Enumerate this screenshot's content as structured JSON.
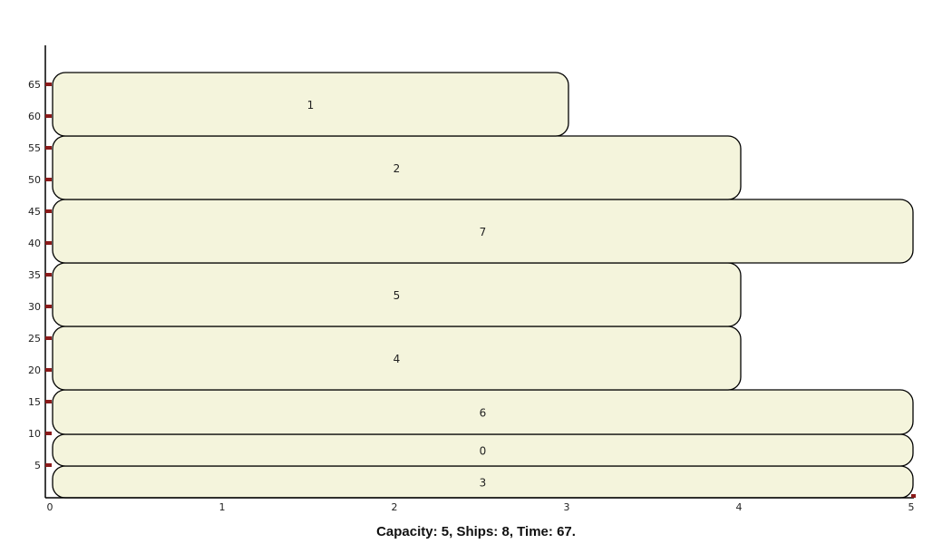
{
  "caption": {
    "capacity_label": "Capacity:",
    "capacity_value": "5",
    "ships_label": "Ships:",
    "ships_value": "8",
    "time_label": "Time:",
    "time_value": "67."
  },
  "colors": {
    "block_fill": "#f4f4dc",
    "block_stroke": "#000000",
    "tick_mark": "#8b1a1a",
    "axis": "#000000",
    "text": "#222222"
  },
  "chart_data": {
    "type": "bar",
    "orientation": "horizontal-blocks",
    "xlim": [
      0,
      5
    ],
    "ylim": [
      0,
      70
    ],
    "x_ticks": [
      "0",
      "1",
      "2",
      "3",
      "4",
      "5"
    ],
    "y_ticks": [
      "5",
      "10",
      "15",
      "20",
      "25",
      "30",
      "35",
      "40",
      "45",
      "50",
      "55",
      "60",
      "65"
    ],
    "blocks": [
      {
        "label": "3",
        "start": 0,
        "end": 5,
        "width": 5
      },
      {
        "label": "0",
        "start": 5,
        "end": 10,
        "width": 5
      },
      {
        "label": "6",
        "start": 10,
        "end": 17,
        "width": 5
      },
      {
        "label": "4",
        "start": 17,
        "end": 27,
        "width": 4
      },
      {
        "label": "5",
        "start": 27,
        "end": 37,
        "width": 4
      },
      {
        "label": "7",
        "start": 37,
        "end": 47,
        "width": 5
      },
      {
        "label": "2",
        "start": 47,
        "end": 57,
        "width": 4
      },
      {
        "label": "1",
        "start": 57,
        "end": 67,
        "width": 3
      }
    ]
  }
}
